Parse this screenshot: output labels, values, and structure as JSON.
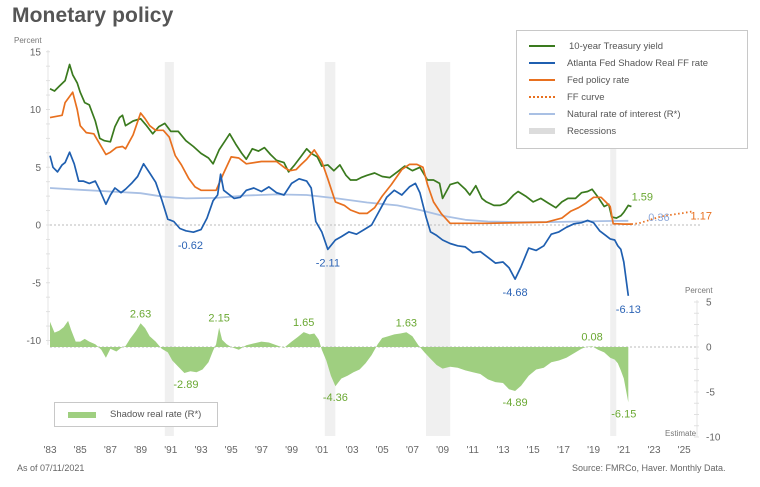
{
  "title": "Monetary policy",
  "as_of": "As of 07/11/2021",
  "source": "Source: FMRCo, Haver.  Monthly Data.",
  "colors": {
    "treasury": "#3a7a1e",
    "shadow": "#1f5fb0",
    "fed": "#e8701f",
    "ff_curve": "#e8701f",
    "natural": "#a9c0e4",
    "recession": "#ebebeb",
    "shadow_real": "#9fcf80",
    "label_green": "#6aa832",
    "label_blue": "#2b63b5",
    "label_lightblue": "#8fa9d9",
    "label_orange": "#e8701f"
  },
  "chart_data": [
    {
      "type": "line",
      "title": "Monetary policy",
      "ylabel": "Percent",
      "ylim": [
        -10,
        15
      ],
      "yticks": [
        15,
        10,
        5,
        0,
        -5,
        -10
      ],
      "xlim": [
        1983,
        2026
      ],
      "xticks": [
        "'83",
        "'85",
        "'87",
        "'89",
        "'91",
        "'93",
        "'95",
        "'97",
        "'99",
        "'01",
        "'03",
        "'05",
        "'07",
        "'09",
        "'11",
        "'13",
        "'15",
        "'17",
        "'19",
        "'21",
        "'23",
        "'25"
      ],
      "xtick_years": [
        1983,
        1985,
        1987,
        1989,
        1991,
        1993,
        1995,
        1997,
        1999,
        2001,
        2003,
        2005,
        2007,
        2009,
        2011,
        2013,
        2015,
        2017,
        2019,
        2021,
        2023,
        2025
      ],
      "legend_position": "top-right",
      "recessions": [
        [
          1990.6,
          1991.2
        ],
        [
          2001.2,
          2001.9
        ],
        [
          2007.9,
          2009.5
        ],
        [
          2020.1,
          2020.5
        ]
      ],
      "series": [
        {
          "name": "10-year Treasury yield",
          "key": "treasury",
          "style": "solid",
          "x": [
            1983.0,
            1983.3,
            1983.6,
            1984.0,
            1984.3,
            1984.5,
            1984.8,
            1985.0,
            1985.3,
            1985.6,
            1986.0,
            1986.3,
            1986.6,
            1987.0,
            1987.3,
            1987.6,
            1987.8,
            1988.0,
            1988.5,
            1989.0,
            1989.4,
            1989.8,
            1990.2,
            1990.6,
            1991.0,
            1991.5,
            1992.0,
            1992.5,
            1993.0,
            1993.5,
            1993.8,
            1994.2,
            1994.6,
            1994.9,
            1995.3,
            1995.7,
            1996.0,
            1996.4,
            1996.8,
            1997.2,
            1997.6,
            1998.0,
            1998.5,
            1998.8,
            1999.2,
            1999.6,
            2000.0,
            2000.3,
            2000.7,
            2001.0,
            2001.4,
            2001.8,
            2002.2,
            2002.6,
            2002.9,
            2003.3,
            2003.6,
            2004.0,
            2004.5,
            2005.0,
            2005.5,
            2006.0,
            2006.5,
            2007.0,
            2007.5,
            2008.0,
            2008.4,
            2008.8,
            2009.0,
            2009.5,
            2010.0,
            2010.5,
            2010.8,
            2011.2,
            2011.6,
            2011.9,
            2012.4,
            2012.8,
            2013.2,
            2013.7,
            2014.0,
            2014.5,
            2015.0,
            2015.5,
            2016.0,
            2016.5,
            2016.9,
            2017.3,
            2017.8,
            2018.2,
            2018.6,
            2018.9,
            2019.3,
            2019.7,
            2020.0,
            2020.2,
            2020.5,
            2020.8,
            2021.0,
            2021.3,
            2021.5
          ],
          "values": [
            11.8,
            11.6,
            12.0,
            12.5,
            13.9,
            13.0,
            12.3,
            11.5,
            10.6,
            10.4,
            9.0,
            7.5,
            7.3,
            7.2,
            8.5,
            9.3,
            9.5,
            8.6,
            9.0,
            9.2,
            8.6,
            7.9,
            8.5,
            8.8,
            8.1,
            8.1,
            7.3,
            6.8,
            6.2,
            5.8,
            5.3,
            6.5,
            7.3,
            7.9,
            7.0,
            6.2,
            5.7,
            6.6,
            6.4,
            6.7,
            6.1,
            5.6,
            5.4,
            4.6,
            5.2,
            5.9,
            6.6,
            6.2,
            5.9,
            5.1,
            5.2,
            4.7,
            5.2,
            4.3,
            3.9,
            3.9,
            4.1,
            4.3,
            4.5,
            4.2,
            4.1,
            4.6,
            5.1,
            4.7,
            5.0,
            3.9,
            3.9,
            3.6,
            2.3,
            3.5,
            3.7,
            3.1,
            2.6,
            3.4,
            2.3,
            2.0,
            1.7,
            1.7,
            1.9,
            2.6,
            2.9,
            2.5,
            2.0,
            2.3,
            1.9,
            1.5,
            2.0,
            2.3,
            2.3,
            2.8,
            2.9,
            3.1,
            2.4,
            1.6,
            1.8,
            0.7,
            0.6,
            0.8,
            1.1,
            1.7,
            1.59
          ]
        },
        {
          "name": "Atlanta Fed Shadow Real FF rate",
          "key": "shadow",
          "style": "solid",
          "x": [
            1983.0,
            1983.2,
            1983.5,
            1983.8,
            1984.0,
            1984.3,
            1984.6,
            1984.9,
            1985.2,
            1985.6,
            1986.0,
            1986.3,
            1986.7,
            1987.0,
            1987.3,
            1987.7,
            1988.0,
            1988.4,
            1988.8,
            1989.2,
            1989.6,
            1990.0,
            1990.4,
            1990.8,
            1991.2,
            1991.6,
            1992.0,
            1992.5,
            1993.0,
            1993.4,
            1993.8,
            1994.1,
            1994.3,
            1994.5,
            1994.8,
            1995.2,
            1995.6,
            1996.0,
            1996.5,
            1997.0,
            1997.5,
            1998.0,
            1998.5,
            1999.0,
            1999.5,
            2000.0,
            2000.3,
            2000.6,
            2001.0,
            2001.4,
            2001.9,
            2002.3,
            2002.8,
            2003.3,
            2003.8,
            2004.3,
            2004.8,
            2005.3,
            2005.8,
            2006.3,
            2006.8,
            2007.2,
            2007.5,
            2007.9,
            2008.2,
            2008.6,
            2009.0,
            2009.5,
            2010.0,
            2010.5,
            2011.0,
            2011.5,
            2012.0,
            2012.5,
            2013.0,
            2013.4,
            2013.8,
            2014.2,
            2014.7,
            2015.2,
            2015.7,
            2016.2,
            2016.7,
            2017.2,
            2017.7,
            2018.2,
            2018.6,
            2019.0,
            2019.4,
            2019.8,
            2020.1,
            2020.4,
            2020.6,
            2020.8,
            2021.0,
            2021.3
          ],
          "values": [
            6.0,
            5.0,
            4.6,
            5.2,
            5.4,
            6.3,
            5.3,
            3.8,
            3.8,
            3.6,
            3.8,
            3.0,
            1.8,
            2.6,
            3.2,
            2.8,
            3.1,
            3.6,
            4.2,
            5.3,
            4.5,
            3.7,
            2.2,
            0.5,
            0.3,
            -0.3,
            -0.5,
            -0.62,
            -0.4,
            0.6,
            2.1,
            2.6,
            4.4,
            3.0,
            2.7,
            2.3,
            2.4,
            3.0,
            3.2,
            2.9,
            3.3,
            2.8,
            2.6,
            3.6,
            4.0,
            3.8,
            3.2,
            0.3,
            -0.6,
            -2.11,
            -1.3,
            -1.0,
            -0.6,
            -0.8,
            -0.4,
            0.0,
            1.2,
            2.4,
            3.0,
            2.6,
            3.3,
            3.6,
            2.8,
            0.7,
            -0.6,
            -0.9,
            -1.3,
            -1.6,
            -1.8,
            -1.9,
            -2.4,
            -2.3,
            -2.8,
            -3.3,
            -3.2,
            -3.7,
            -4.68,
            -3.6,
            -2.0,
            -2.2,
            -1.8,
            -0.8,
            -0.6,
            -0.2,
            0.1,
            0.2,
            0.4,
            0.2,
            -0.5,
            -0.9,
            -1.2,
            -1.3,
            -1.8,
            -2.1,
            -3.2,
            -6.13
          ]
        },
        {
          "name": "Fed policy rate",
          "key": "fed",
          "style": "solid",
          "x": [
            1983.0,
            1983.4,
            1983.8,
            1984.0,
            1984.5,
            1984.8,
            1985.0,
            1985.4,
            1985.9,
            1986.3,
            1986.7,
            1987.0,
            1987.4,
            1987.8,
            1988.0,
            1988.5,
            1989.0,
            1989.3,
            1989.6,
            1990.0,
            1990.5,
            1990.9,
            1991.3,
            1991.7,
            1992.2,
            1992.6,
            1993.0,
            1993.5,
            1994.0,
            1994.5,
            1995.0,
            1995.5,
            1996.0,
            1997.0,
            1998.0,
            1998.6,
            1998.9,
            1999.3,
            1999.6,
            2000.0,
            2000.5,
            2001.0,
            2001.4,
            2001.9,
            2002.5,
            2002.9,
            2003.5,
            2004.0,
            2004.5,
            2005.0,
            2005.6,
            2006.3,
            2006.8,
            2007.3,
            2007.7,
            2008.0,
            2008.4,
            2008.9,
            2009.5,
            2012.0,
            2015.9,
            2016.9,
            2017.5,
            2018.0,
            2018.5,
            2019.0,
            2019.5,
            2019.8,
            2020.1,
            2020.3,
            2020.6,
            2021.0,
            2021.5
          ],
          "values": [
            9.3,
            9.4,
            9.5,
            10.6,
            11.5,
            10.0,
            8.6,
            8.0,
            7.9,
            7.0,
            6.1,
            6.3,
            6.7,
            6.8,
            6.6,
            7.8,
            9.7,
            9.2,
            8.6,
            8.2,
            8.2,
            7.6,
            6.0,
            5.2,
            4.0,
            3.3,
            3.0,
            3.0,
            3.0,
            4.5,
            5.9,
            5.8,
            5.3,
            5.5,
            5.5,
            4.9,
            4.7,
            4.8,
            5.2,
            5.7,
            6.5,
            5.5,
            4.0,
            2.0,
            1.7,
            1.3,
            1.0,
            1.0,
            1.5,
            2.5,
            3.5,
            4.8,
            5.25,
            5.25,
            5.0,
            3.5,
            2.0,
            1.0,
            0.15,
            0.15,
            0.25,
            0.6,
            1.2,
            1.5,
            1.9,
            2.4,
            2.4,
            2.0,
            1.6,
            0.1,
            0.1,
            0.08,
            0.08
          ]
        },
        {
          "name": "FF curve",
          "key": "ff_curve",
          "style": "dotted",
          "x": [
            2021.5,
            2022.0,
            2022.5,
            2023.0,
            2023.5,
            2024.0,
            2024.5,
            2025.0,
            2025.5
          ],
          "values": [
            0.08,
            0.15,
            0.35,
            0.55,
            0.75,
            0.85,
            0.95,
            1.05,
            1.17
          ]
        },
        {
          "name": "Natural rate of interest (R*)",
          "key": "natural",
          "style": "solid",
          "x": [
            1983.0,
            1985.0,
            1987.0,
            1989.0,
            1990.5,
            1992.0,
            1994.0,
            1996.0,
            1998.0,
            2000.0,
            2002.0,
            2004.0,
            2006.0,
            2007.5,
            2009.0,
            2010.5,
            2012.0,
            2014.0,
            2016.0,
            2018.0,
            2020.0,
            2021.3
          ],
          "values": [
            3.2,
            3.05,
            2.9,
            2.75,
            2.45,
            2.3,
            2.35,
            2.55,
            2.65,
            2.6,
            2.3,
            1.95,
            1.7,
            1.3,
            0.8,
            0.45,
            0.3,
            0.25,
            0.25,
            0.3,
            0.35,
            0.36
          ]
        }
      ],
      "annotations": [
        {
          "text": "-0.62",
          "x": 1992.3,
          "y": -0.62,
          "color_key": "label_blue"
        },
        {
          "text": "-2.11",
          "x": 2001.4,
          "y": -2.11,
          "color_key": "label_blue"
        },
        {
          "text": "-4.68",
          "x": 2013.8,
          "y": -4.68,
          "color_key": "label_blue"
        },
        {
          "text": "-6.13",
          "x": 2021.3,
          "y": -6.13,
          "color_key": "label_blue"
        },
        {
          "text": "1.59",
          "x": 2021.3,
          "y": 1.59,
          "color_key": "label_green"
        },
        {
          "text": "0.36",
          "x": 2022.0,
          "y": 0.36,
          "color_key": "label_lightblue"
        },
        {
          "text": "1.17",
          "x": 2025.6,
          "y": 1.17,
          "color_key": "label_orange"
        }
      ]
    },
    {
      "type": "area",
      "name": "Shadow real rate (R*)",
      "ylabel": "Percent",
      "axis_side": "right",
      "ylim": [
        -10,
        5
      ],
      "yticks": [
        5,
        0,
        -5,
        -10
      ],
      "note": "Estimate",
      "legend_position": "bottom-left",
      "x": [
        1983.0,
        1983.3,
        1983.6,
        1983.9,
        1984.2,
        1984.4,
        1984.7,
        1985.0,
        1985.3,
        1985.6,
        1986.0,
        1986.4,
        1986.7,
        1987.0,
        1987.4,
        1987.7,
        1988.0,
        1988.3,
        1988.7,
        1989.0,
        1989.3,
        1989.6,
        1990.0,
        1990.4,
        1990.8,
        1991.1,
        1991.5,
        1991.9,
        1992.3,
        1992.7,
        1993.1,
        1993.5,
        1993.8,
        1994.0,
        1994.2,
        1994.4,
        1994.7,
        1995.0,
        1995.5,
        1996.0,
        1996.5,
        1997.0,
        1997.5,
        1998.0,
        1998.5,
        1999.0,
        1999.4,
        1999.8,
        2000.2,
        2000.5,
        2000.8,
        2001.0,
        2001.3,
        2001.6,
        2001.9,
        2002.3,
        2002.7,
        2003.1,
        2003.5,
        2003.9,
        2004.3,
        2004.7,
        2005.0,
        2005.4,
        2005.8,
        2006.2,
        2006.6,
        2007.0,
        2007.4,
        2007.8,
        2008.2,
        2008.6,
        2009.0,
        2009.5,
        2010.0,
        2010.5,
        2011.0,
        2011.5,
        2012.0,
        2012.5,
        2013.0,
        2013.4,
        2013.8,
        2014.2,
        2014.7,
        2015.2,
        2015.7,
        2016.2,
        2016.7,
        2017.2,
        2017.7,
        2018.2,
        2018.5,
        2018.9,
        2019.3,
        2019.7,
        2020.1,
        2020.4,
        2020.6,
        2020.8,
        2021.0,
        2021.3
      ],
      "values": [
        2.8,
        1.6,
        1.8,
        2.2,
        2.9,
        1.9,
        0.6,
        0.6,
        0.9,
        0.6,
        0.3,
        -0.3,
        -1.2,
        -0.2,
        -0.5,
        -0.1,
        0.1,
        0.9,
        1.8,
        2.63,
        2.1,
        1.2,
        0.6,
        -0.2,
        -0.6,
        -1.5,
        -2.2,
        -2.89,
        -2.7,
        -2.8,
        -2.5,
        -1.7,
        -0.4,
        0.3,
        2.15,
        0.8,
        0.3,
        0.0,
        -0.3,
        0.2,
        0.4,
        0.6,
        0.5,
        0.2,
        -0.1,
        0.6,
        1.1,
        1.65,
        1.4,
        1.5,
        0.8,
        -0.3,
        -1.5,
        -3.2,
        -4.36,
        -3.5,
        -3.2,
        -2.8,
        -2.5,
        -1.8,
        -0.9,
        0.3,
        1.0,
        1.2,
        1.4,
        1.5,
        1.63,
        1.2,
        0.2,
        -0.6,
        -1.3,
        -2.0,
        -2.4,
        -2.2,
        -2.3,
        -2.6,
        -2.8,
        -3.0,
        -3.6,
        -3.9,
        -4.0,
        -4.7,
        -4.89,
        -4.3,
        -3.2,
        -2.5,
        -2.3,
        -1.7,
        -1.5,
        -1.2,
        -0.7,
        -0.2,
        0.0,
        0.08,
        -0.3,
        -0.6,
        -1.2,
        -1.4,
        -1.8,
        -2.6,
        -3.5,
        -6.15
      ],
      "annotations": [
        {
          "text": "2.63",
          "x": 1989.0,
          "y": 2.63
        },
        {
          "text": "-2.89",
          "x": 1992.0,
          "y": -2.89
        },
        {
          "text": "2.15",
          "x": 1994.2,
          "y": 2.15
        },
        {
          "text": "1.65",
          "x": 1999.8,
          "y": 1.65
        },
        {
          "text": "-4.36",
          "x": 2001.9,
          "y": -4.36
        },
        {
          "text": "1.63",
          "x": 2006.6,
          "y": 1.63
        },
        {
          "text": "-4.89",
          "x": 2013.8,
          "y": -4.89
        },
        {
          "text": "0.08",
          "x": 2018.9,
          "y": 0.08
        },
        {
          "text": "-6.15",
          "x": 2021.0,
          "y": -6.15
        }
      ]
    }
  ],
  "legend": {
    "items": [
      {
        "label": "10-year Treasury yield",
        "key": "treasury",
        "style": "line"
      },
      {
        "label": "Atlanta Fed Shadow Real FF rate",
        "key": "shadow",
        "style": "line"
      },
      {
        "label": "Fed policy rate",
        "key": "fed",
        "style": "line"
      },
      {
        "label": "FF curve",
        "key": "ff_curve",
        "style": "dotted"
      },
      {
        "label": "Natural rate of interest (R*)",
        "key": "natural",
        "style": "line"
      },
      {
        "label": "Recessions",
        "key": "recession",
        "style": "band"
      }
    ],
    "bottom_label": "Shadow real rate (R*)"
  },
  "axes": {
    "left_unit": "Percent",
    "right_unit": "Percent",
    "estimate_label": "Estimate"
  }
}
